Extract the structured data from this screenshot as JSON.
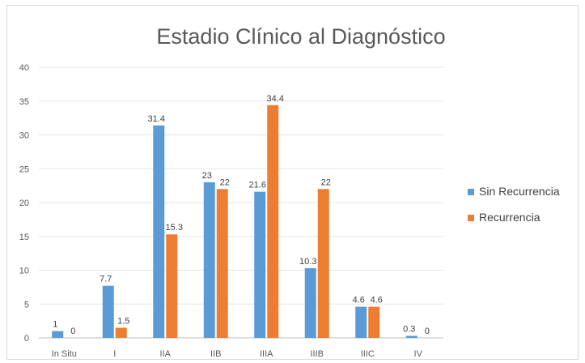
{
  "chart_data": {
    "type": "bar",
    "title": "Estadio Clínico al Diagnóstico",
    "categories": [
      "In Situ",
      "I",
      "IIA",
      "IIB",
      "IIIA",
      "IIIB",
      "IIIC",
      "IV"
    ],
    "series": [
      {
        "name": "Sin Recurrencia",
        "color": "#5b9bd5",
        "values": [
          1,
          7.7,
          31.4,
          23,
          21.6,
          10.3,
          4.6,
          0.3
        ]
      },
      {
        "name": "Recurrencia",
        "color": "#ed7d31",
        "values": [
          0,
          1.5,
          15.3,
          22,
          34.4,
          22,
          4.6,
          0
        ]
      }
    ],
    "ylim": [
      0,
      40
    ],
    "yticks": [
      0,
      5,
      10,
      15,
      20,
      25,
      30,
      35,
      40
    ],
    "grid": true,
    "legend": "right",
    "xlabel": "",
    "ylabel": ""
  }
}
